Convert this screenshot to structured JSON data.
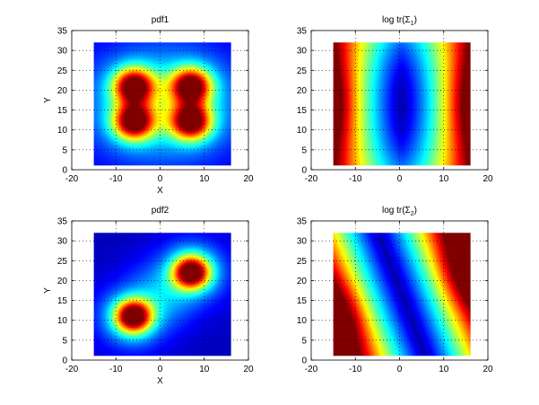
{
  "chart_data": [
    {
      "type": "heatmap",
      "title": "pdf1",
      "title_suffix": "",
      "xlabel": "X",
      "ylabel": "Y",
      "xlim": [
        -20,
        20
      ],
      "ylim": [
        0,
        35
      ],
      "xticks": [
        -20,
        -10,
        0,
        10,
        20
      ],
      "yticks": [
        0,
        5,
        10,
        15,
        20,
        25,
        30,
        35
      ],
      "grid": true,
      "colormap": "jet",
      "data_extent": {
        "x": [
          -15,
          16
        ],
        "y": [
          1,
          32
        ]
      },
      "description_field": "four peaks at (-6,21), (7,21), (-6,12), (7,12)",
      "peaks": [
        {
          "x": -6,
          "y": 21,
          "amplitude": 1.0,
          "spread": 3.2
        },
        {
          "x": 7,
          "y": 21,
          "amplitude": 1.0,
          "spread": 3.2
        },
        {
          "x": -6,
          "y": 12,
          "amplitude": 1.0,
          "spread": 3.2
        },
        {
          "x": 7,
          "y": 12,
          "amplitude": 1.0,
          "spread": 3.2
        }
      ]
    },
    {
      "type": "heatmap",
      "title": "log tr(Σ",
      "title_sub": "1",
      "title_suffix": ")",
      "xlabel": "",
      "ylabel": "",
      "xlim": [
        -20,
        20
      ],
      "ylim": [
        0,
        35
      ],
      "xticks": [
        -20,
        -10,
        0,
        10,
        20
      ],
      "yticks": [
        0,
        5,
        10,
        15,
        20,
        25,
        30,
        35
      ],
      "grid": true,
      "colormap": "jet",
      "data_extent": {
        "x": [
          -15,
          16
        ],
        "y": [
          1,
          32
        ]
      }
    },
    {
      "type": "heatmap",
      "title": "pdf2",
      "title_suffix": "",
      "xlabel": "X",
      "ylabel": "Y",
      "xlim": [
        -20,
        20
      ],
      "ylim": [
        0,
        35
      ],
      "xticks": [
        -20,
        -10,
        0,
        10,
        20
      ],
      "yticks": [
        0,
        5,
        10,
        15,
        20,
        25,
        30,
        35
      ],
      "grid": true,
      "colormap": "jet",
      "data_extent": {
        "x": [
          -15,
          16
        ],
        "y": [
          1,
          32
        ]
      },
      "peaks": [
        {
          "x": -6,
          "y": 11,
          "amplitude": 1.0,
          "spread": 2.9
        },
        {
          "x": 7,
          "y": 22,
          "amplitude": 1.0,
          "spread": 2.9
        }
      ]
    },
    {
      "type": "heatmap",
      "title": "log tr(Σ",
      "title_sub": "2",
      "title_suffix": ")",
      "xlabel": "",
      "ylabel": "",
      "xlim": [
        -20,
        20
      ],
      "ylim": [
        0,
        35
      ],
      "xticks": [
        -20,
        -10,
        0,
        10,
        20
      ],
      "yticks": [
        0,
        5,
        10,
        15,
        20,
        25,
        30,
        35
      ],
      "grid": true,
      "colormap": "jet",
      "data_extent": {
        "x": [
          -15,
          16
        ],
        "y": [
          1,
          32
        ]
      }
    }
  ]
}
